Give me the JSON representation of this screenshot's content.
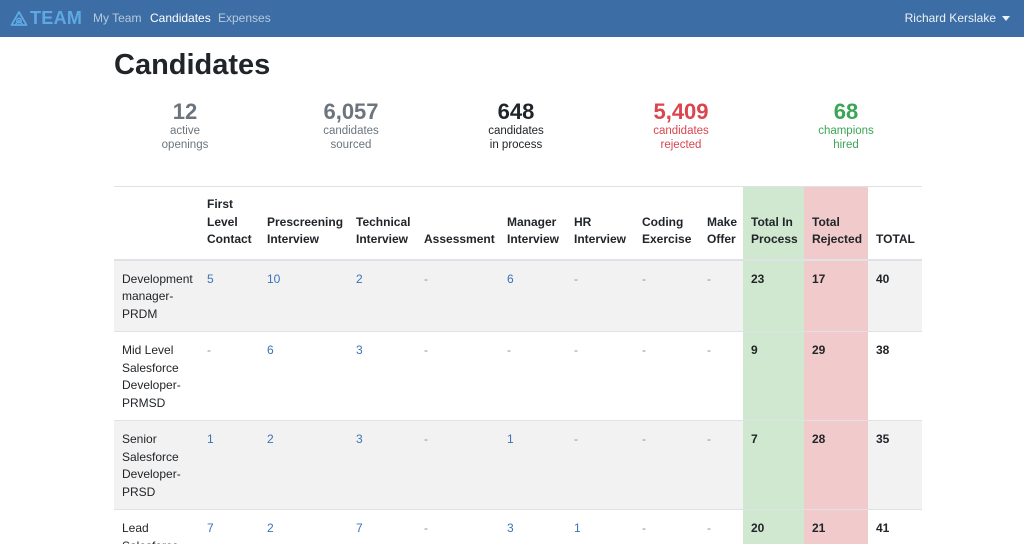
{
  "navbar": {
    "brand": "TEAM",
    "links": [
      {
        "label": "My Team",
        "active": false
      },
      {
        "label": "Candidates",
        "active": true
      },
      {
        "label": "Expenses",
        "active": false
      }
    ],
    "user": "Richard Kerslake"
  },
  "page": {
    "title": "Candidates"
  },
  "stats": [
    {
      "value": "12",
      "line1": "active",
      "line2": "openings",
      "color": "#6c757d"
    },
    {
      "value": "6,057",
      "line1": "candidates",
      "line2": "sourced",
      "color": "#6c757d"
    },
    {
      "value": "648",
      "line1": "candidates",
      "line2": "in process",
      "color": "#212529"
    },
    {
      "value": "5,409",
      "line1": "candidates",
      "line2": "rejected",
      "color": "#d9464e"
    },
    {
      "value": "68",
      "line1": "champions",
      "line2": "hired",
      "color": "#3aa655"
    }
  ],
  "table": {
    "headers": [
      "",
      "First Level Contact",
      "Prescreening Interview",
      "Technical Interview",
      "Assessment",
      "Manager Interview",
      "HR Interview",
      "Coding Exercise",
      "Make Offer",
      "Total In Process",
      "Total Rejected",
      "TOTAL"
    ],
    "rows": [
      {
        "role": "Development manager-PRDM",
        "cells": [
          "5",
          "10",
          "2",
          "-",
          "6",
          "-",
          "-",
          "-",
          "23",
          "17",
          "40"
        ]
      },
      {
        "role": "Mid Level Salesforce Developer-PRMSD",
        "cells": [
          "-",
          "6",
          "3",
          "-",
          "-",
          "-",
          "-",
          "-",
          "9",
          "29",
          "38"
        ]
      },
      {
        "role": "Senior Salesforce Developer-PRSD",
        "cells": [
          "1",
          "2",
          "3",
          "-",
          "1",
          "-",
          "-",
          "-",
          "7",
          "28",
          "35"
        ]
      },
      {
        "role": "Lead Salesforce",
        "cells": [
          "7",
          "2",
          "7",
          "-",
          "3",
          "1",
          "-",
          "-",
          "20",
          "21",
          "41"
        ]
      }
    ]
  }
}
